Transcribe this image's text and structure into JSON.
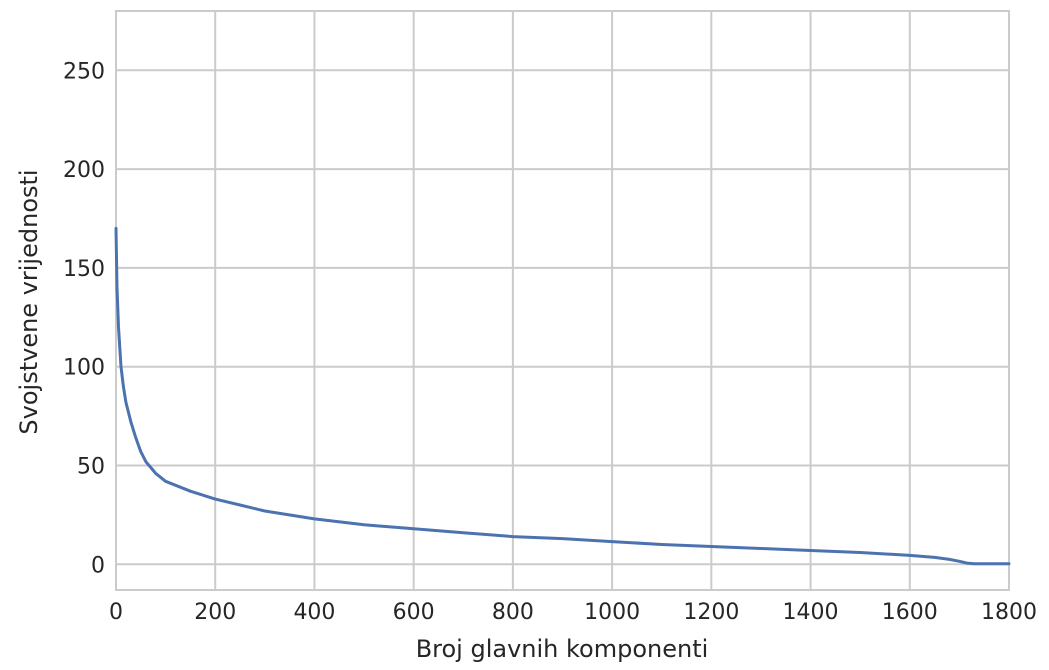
{
  "chart_data": {
    "type": "line",
    "title": "",
    "xlabel": "Broj glavnih komponenti",
    "ylabel": "Svojstvene vrijednosti",
    "xlim": [
      0,
      1800
    ],
    "ylim": [
      -13,
      280
    ],
    "x_ticks": [
      0,
      200,
      400,
      600,
      800,
      1000,
      1200,
      1400,
      1600,
      1800
    ],
    "y_ticks": [
      0,
      50,
      100,
      150,
      200,
      250
    ],
    "grid": true,
    "line_color": "#4c72b0",
    "grid_color": "#cbcbcb",
    "text_color": "#262626",
    "series": [
      {
        "x": [
          0,
          2,
          5,
          10,
          15,
          20,
          30,
          40,
          50,
          60,
          80,
          100,
          150,
          200,
          250,
          300,
          400,
          500,
          600,
          700,
          800,
          900,
          1000,
          1100,
          1200,
          1300,
          1400,
          1500,
          1600,
          1650,
          1680,
          1700,
          1715,
          1730,
          1800
        ],
        "y": [
          170,
          140,
          120,
          100,
          90,
          82,
          72,
          64,
          57,
          52,
          46,
          42,
          37,
          33,
          30,
          27,
          23,
          20,
          18,
          16,
          14,
          13,
          11.5,
          10,
          9,
          8,
          7,
          6,
          4.5,
          3.5,
          2.5,
          1.5,
          0.6,
          0.3,
          0.3
        ]
      }
    ]
  }
}
